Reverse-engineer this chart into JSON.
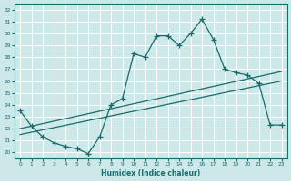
{
  "xlabel": "Humidex (Indice chaleur)",
  "bg_color": "#cce8e8",
  "grid_color": "#ffffff",
  "line_color": "#1a6b6b",
  "xlim": [
    -0.5,
    23.5
  ],
  "ylim": [
    19.5,
    32.5
  ],
  "xticks": [
    0,
    1,
    2,
    3,
    4,
    5,
    6,
    7,
    8,
    9,
    10,
    11,
    12,
    13,
    14,
    15,
    16,
    17,
    18,
    19,
    20,
    21,
    22,
    23
  ],
  "yticks": [
    20,
    21,
    22,
    23,
    24,
    25,
    26,
    27,
    28,
    29,
    30,
    31,
    32
  ],
  "line1_x": [
    0,
    1,
    2,
    3,
    4,
    5,
    6,
    7,
    8,
    9,
    10,
    11,
    12,
    13,
    14,
    15,
    16,
    17,
    18,
    19,
    20,
    21,
    22,
    23
  ],
  "line1_y": [
    23.5,
    22.2,
    21.3,
    20.8,
    20.5,
    20.3,
    19.9,
    21.3,
    24.0,
    24.5,
    28.3,
    28.0,
    29.8,
    29.8,
    29.0,
    30.0,
    31.2,
    29.5,
    27.0,
    26.7,
    26.5,
    25.8,
    22.3,
    22.3
  ],
  "line2_x": [
    0,
    23
  ],
  "line2_y": [
    22.0,
    26.8
  ],
  "line3_x": [
    0,
    23
  ],
  "line3_y": [
    21.5,
    26.0
  ]
}
